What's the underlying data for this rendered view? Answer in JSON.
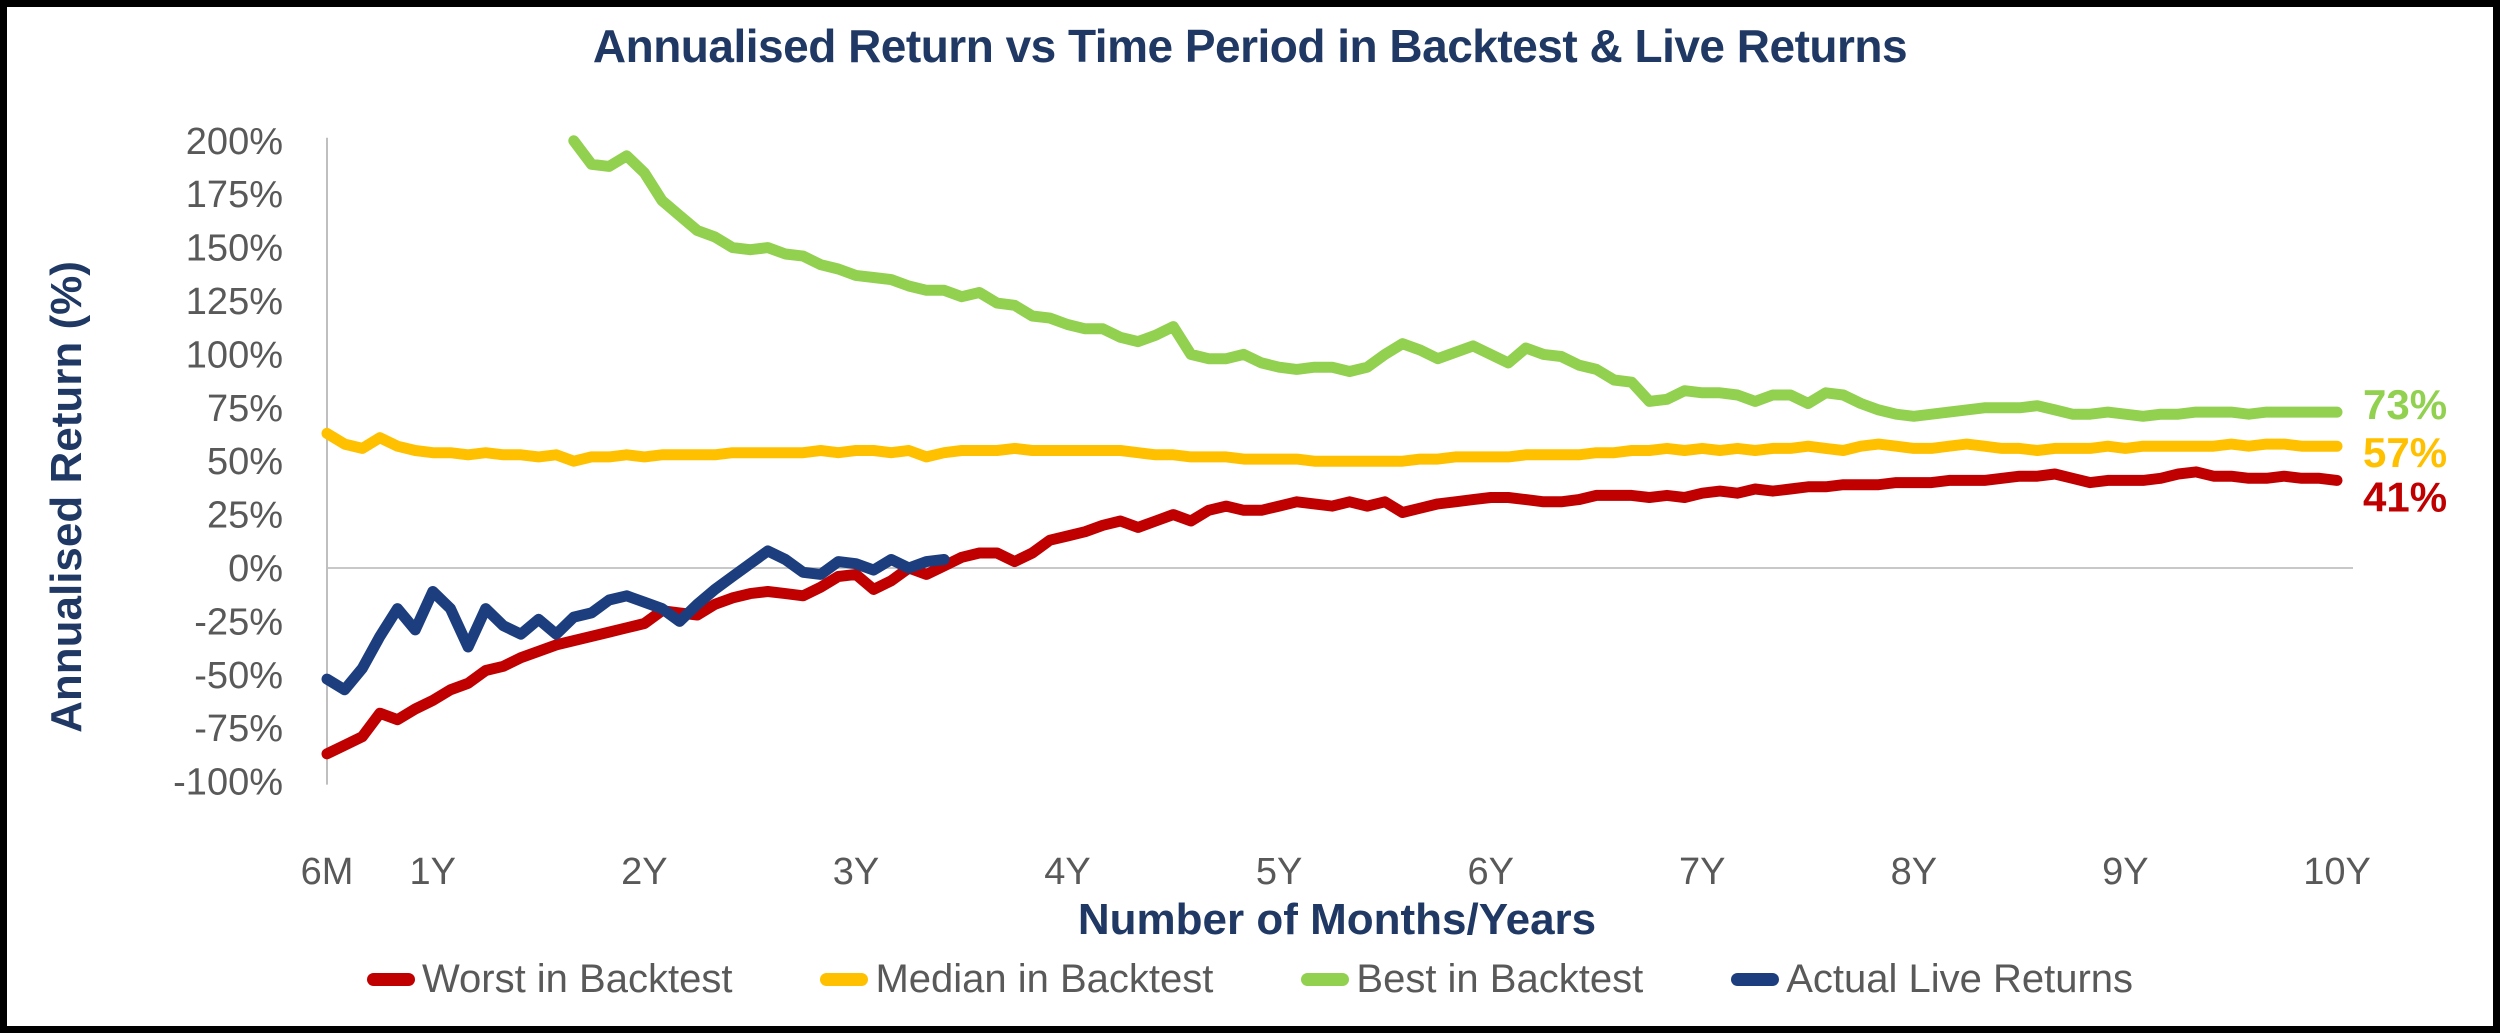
{
  "chart": {
    "axis_text_color": "#595959",
    "axis_line_color": "#BFBFBF",
    "gridline_color": "#C8C8C8",
    "title_color": "#1F3864",
    "legend_text_color": "#595959"
  },
  "chart_data": {
    "type": "line",
    "title": "Annualised Return vs Time Period in Backtest & Live Returns",
    "xlabel": "Number of Months/Years",
    "ylabel": "Annualised Return (%)",
    "x_unit": "months",
    "x_range_months": [
      6,
      120
    ],
    "ylim": [
      -100,
      200
    ],
    "ytick_step": 25,
    "ytick_labels": [
      "200%",
      "175%",
      "150%",
      "125%",
      "100%",
      "75%",
      "50%",
      "25%",
      "0%",
      "-25%",
      "-50%",
      "-75%",
      "-100%"
    ],
    "xticks": [
      {
        "label": "6M",
        "month": 6
      },
      {
        "label": "1Y",
        "month": 12
      },
      {
        "label": "2Y",
        "month": 24
      },
      {
        "label": "3Y",
        "month": 36
      },
      {
        "label": "4Y",
        "month": 48
      },
      {
        "label": "5Y",
        "month": 60
      },
      {
        "label": "6Y",
        "month": 72
      },
      {
        "label": "7Y",
        "month": 84
      },
      {
        "label": "8Y",
        "month": 96
      },
      {
        "label": "9Y",
        "month": 108
      },
      {
        "label": "10Y",
        "month": 120
      }
    ],
    "grid": "zero-line-only",
    "legend_position": "bottom",
    "series": [
      {
        "name": "Worst in Backtest",
        "color": "#C00000",
        "start_month": 6,
        "end_label": "41%",
        "values": [
          -87,
          -83,
          -79,
          -68,
          -71,
          -66,
          -62,
          -57,
          -54,
          -48,
          -46,
          -42,
          -39,
          -36,
          -34,
          -32,
          -30,
          -28,
          -26,
          -20,
          -21,
          -22,
          -17,
          -14,
          -12,
          -11,
          -12,
          -13,
          -9,
          -4,
          -3,
          -10,
          -6,
          0,
          -3,
          1,
          5,
          7,
          7,
          3,
          7,
          13,
          15,
          17,
          20,
          22,
          19,
          22,
          25,
          22,
          27,
          29,
          27,
          27,
          29,
          31,
          30,
          29,
          31,
          29,
          31,
          26,
          28,
          30,
          31,
          32,
          33,
          33,
          32,
          31,
          31,
          32,
          34,
          34,
          34,
          33,
          34,
          33,
          35,
          36,
          35,
          37,
          36,
          37,
          38,
          38,
          39,
          39,
          39,
          40,
          40,
          40,
          41,
          41,
          41,
          42,
          43,
          43,
          44,
          42,
          40,
          41,
          41,
          41,
          42,
          44,
          45,
          43,
          43,
          42,
          42,
          43,
          42,
          42,
          41
        ]
      },
      {
        "name": "Median in Backtest",
        "color": "#FFC000",
        "start_month": 6,
        "end_label": "57%",
        "values": [
          63,
          58,
          56,
          61,
          57,
          55,
          54,
          54,
          53,
          54,
          53,
          53,
          52,
          53,
          50,
          52,
          52,
          53,
          52,
          53,
          53,
          53,
          53,
          54,
          54,
          54,
          54,
          54,
          55,
          54,
          55,
          55,
          54,
          55,
          52,
          54,
          55,
          55,
          55,
          56,
          55,
          55,
          55,
          55,
          55,
          55,
          54,
          53,
          53,
          52,
          52,
          52,
          51,
          51,
          51,
          51,
          50,
          50,
          50,
          50,
          50,
          50,
          51,
          51,
          52,
          52,
          52,
          52,
          53,
          53,
          53,
          53,
          54,
          54,
          55,
          55,
          56,
          55,
          56,
          55,
          56,
          55,
          56,
          56,
          57,
          56,
          55,
          57,
          58,
          57,
          56,
          56,
          57,
          58,
          57,
          56,
          56,
          55,
          56,
          56,
          56,
          57,
          56,
          57,
          57,
          57,
          57,
          57,
          58,
          57,
          58,
          58,
          57,
          57,
          57
        ]
      },
      {
        "name": "Best in Backtest",
        "color": "#92D050",
        "start_month": 20,
        "end_label": "73%",
        "values": [
          200,
          189,
          188,
          193,
          185,
          172,
          165,
          158,
          155,
          150,
          149,
          150,
          147,
          146,
          142,
          140,
          137,
          136,
          135,
          132,
          130,
          130,
          127,
          129,
          124,
          123,
          118,
          117,
          114,
          112,
          112,
          108,
          106,
          109,
          113,
          100,
          98,
          98,
          100,
          96,
          94,
          93,
          94,
          94,
          92,
          94,
          100,
          105,
          102,
          98,
          101,
          104,
          100,
          96,
          103,
          100,
          99,
          95,
          93,
          88,
          87,
          78,
          79,
          83,
          82,
          82,
          81,
          78,
          81,
          81,
          77,
          82,
          81,
          77,
          74,
          72,
          71,
          72,
          73,
          74,
          75,
          75,
          75,
          76,
          74,
          72,
          72,
          73,
          72,
          71,
          72,
          72,
          73,
          73,
          73,
          72,
          73,
          73,
          73,
          73,
          73
        ]
      },
      {
        "name": "Actual Live Returns",
        "color": "#1D3E7E",
        "start_month": 6,
        "end_label": null,
        "values": [
          -52,
          -57,
          -47,
          -32,
          -19,
          -29,
          -11,
          -19,
          -37,
          -19,
          -27,
          -31,
          -24,
          -31,
          -23,
          -21,
          -15,
          -13,
          -16,
          -19,
          -25,
          -17,
          -10,
          -4,
          2,
          8,
          4,
          -2,
          -3,
          3,
          2,
          -1,
          4,
          0,
          3,
          4
        ]
      }
    ]
  }
}
